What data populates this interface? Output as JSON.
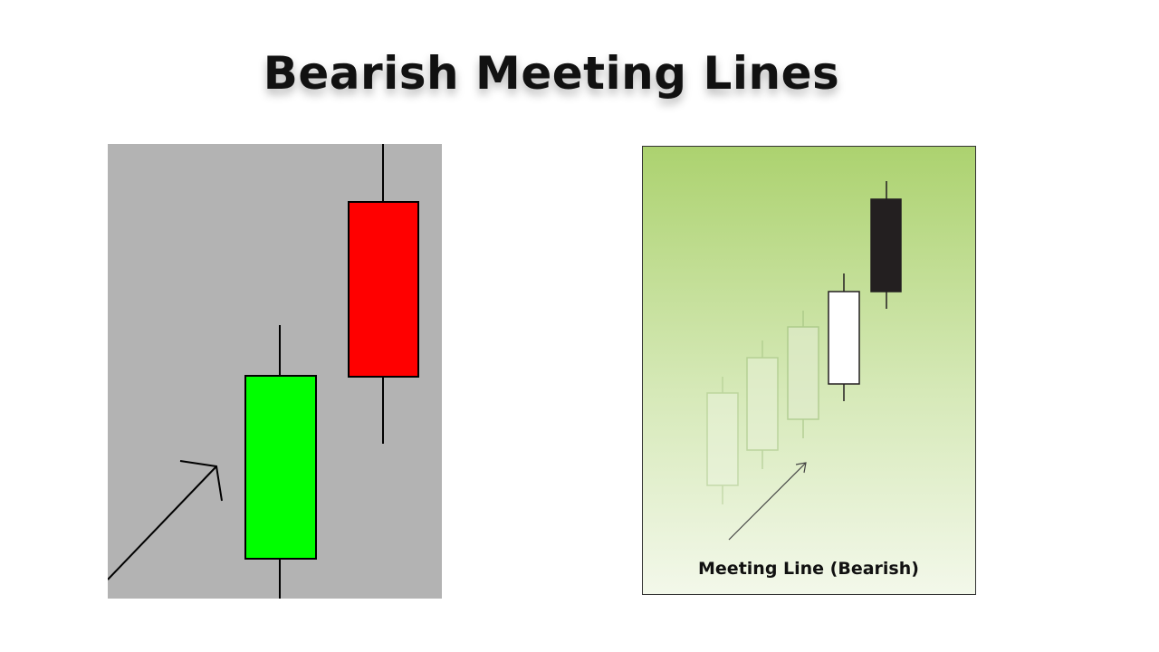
{
  "title": "Bearish Meeting Lines",
  "left_diagram": {
    "background": "#b3b3b3",
    "bullish_color": "#00ff00",
    "bearish_color": "#ff0000",
    "outline_color": "#000000"
  },
  "right_diagram": {
    "caption": "Meeting Line (Bearish)",
    "gradient_top": "#acd26f",
    "gradient_bottom": "#f3f8ea",
    "bullish_color": "#ffffff",
    "bearish_color": "#231f20",
    "faded_color": "#9fbf7e"
  }
}
